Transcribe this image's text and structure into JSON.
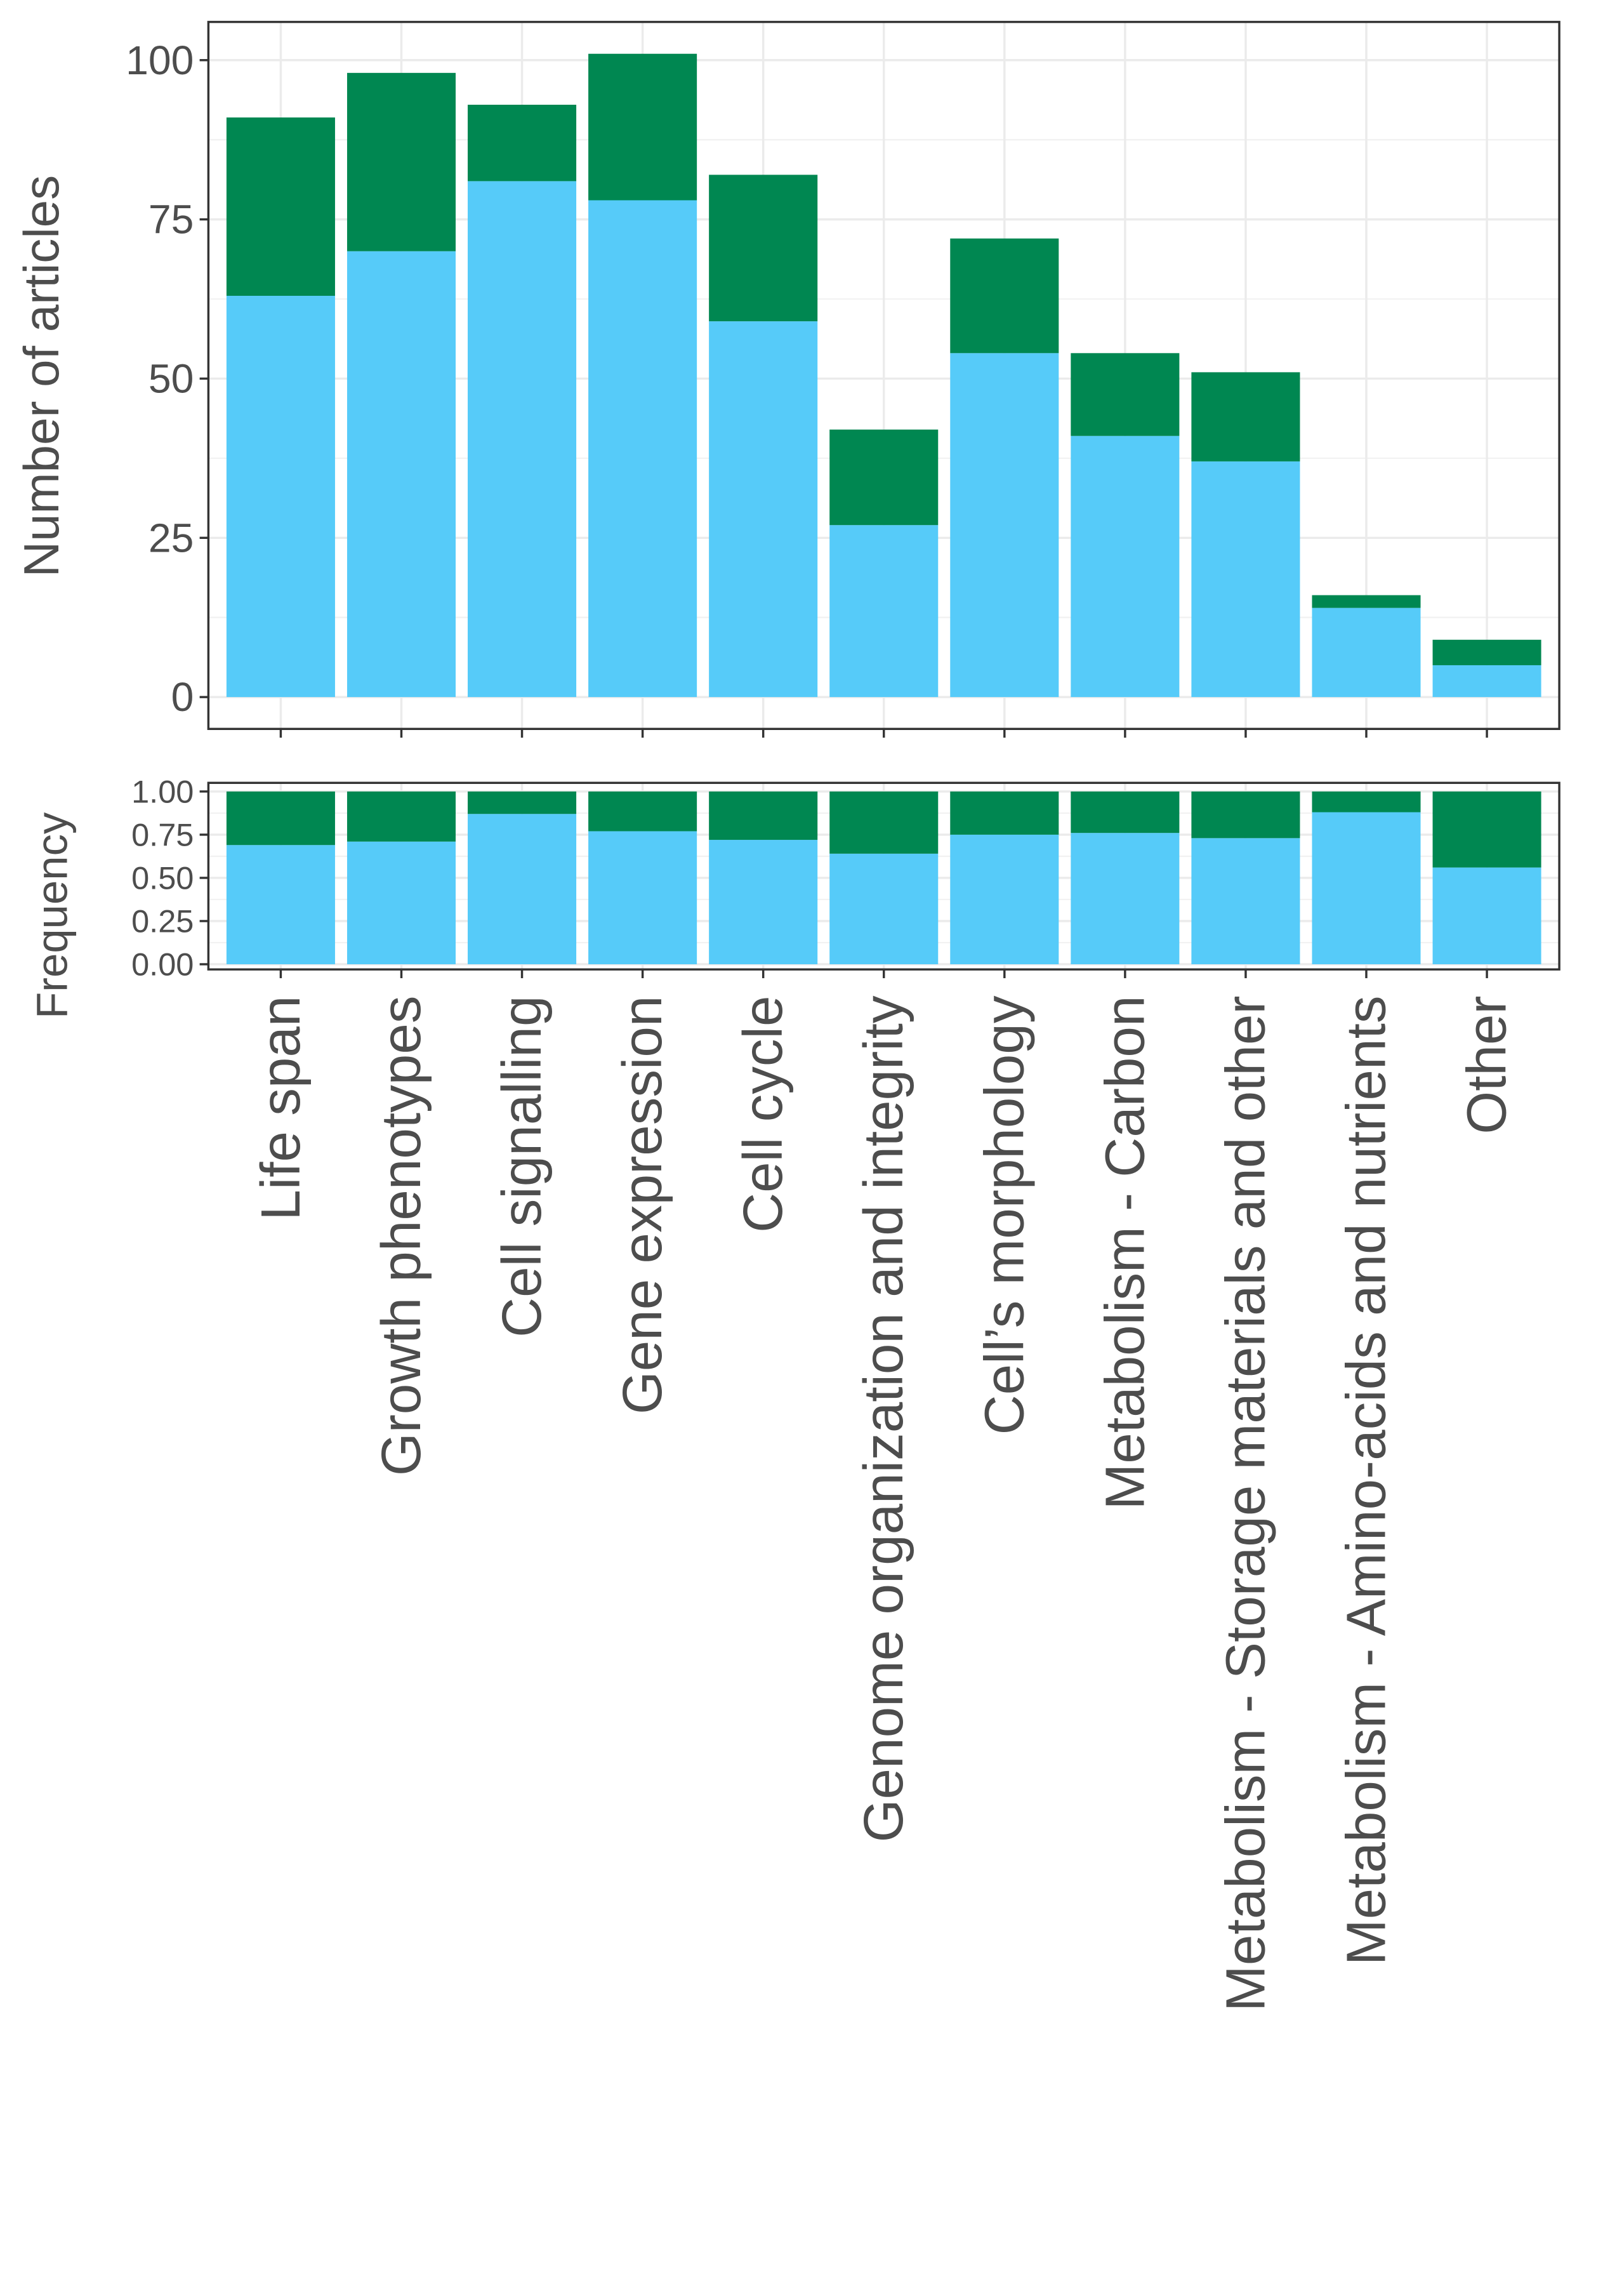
{
  "chart_data": [
    {
      "type": "stacked-bar",
      "ylabel": "Number of articles",
      "series": [
        {
          "color": "#56cbf9",
          "values": [
            63,
            70,
            81,
            78,
            59,
            27,
            54,
            41,
            37,
            14,
            5
          ]
        },
        {
          "color": "#008751",
          "values": [
            28,
            28,
            12,
            23,
            23,
            15,
            18,
            13,
            14,
            2,
            4
          ]
        }
      ],
      "ylim": [
        -5,
        106
      ],
      "yticks": [
        0,
        25,
        50,
        75,
        100
      ],
      "grid": true
    },
    {
      "type": "stacked-bar",
      "ylabel": "Frequency",
      "categories": [
        "Life span",
        "Growth phenotypes",
        "Cell signalling",
        "Gene expression",
        "Cell cycle",
        "Genome organization and integrity",
        "Cell’s morphology",
        "Metabolism - Carbon",
        "Metabolism - Storage materials and other",
        "Metabolism - Amino-acids and nutrients",
        "Other"
      ],
      "series": [
        {
          "color": "#56cbf9",
          "values": [
            0.69,
            0.71,
            0.87,
            0.77,
            0.72,
            0.64,
            0.75,
            0.76,
            0.73,
            0.88,
            0.56
          ]
        },
        {
          "color": "#008751",
          "values": [
            0.31,
            0.29,
            0.13,
            0.23,
            0.28,
            0.36,
            0.25,
            0.24,
            0.27,
            0.12,
            0.44
          ]
        }
      ],
      "ylim": [
        -0.03,
        1.05
      ],
      "yticks": [
        {
          "value": 0,
          "label": "0.00"
        },
        {
          "value": 0.25,
          "label": "0.25"
        },
        {
          "value": 0.5,
          "label": "0.50"
        },
        {
          "value": 0.75,
          "label": "0.75"
        },
        {
          "value": 1,
          "label": "1.00"
        }
      ],
      "grid": true
    }
  ]
}
